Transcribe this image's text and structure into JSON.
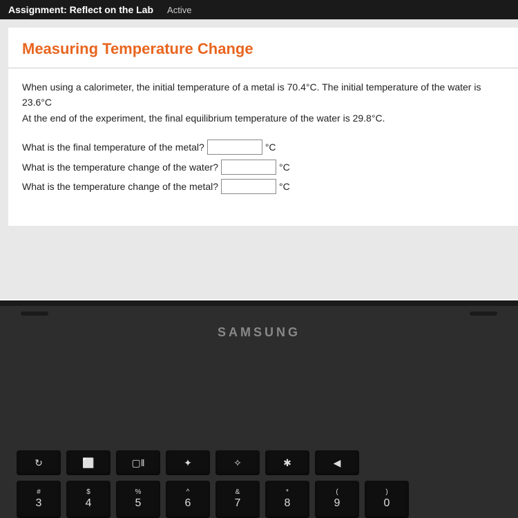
{
  "header": {
    "assignment_label": "Assignment: Reflect on the Lab",
    "status": "Active"
  },
  "lesson": {
    "title": "Measuring Temperature Change",
    "problem_line1": "When using a calorimeter, the initial temperature of a metal is 70.4°C. The initial temperature of the water is 23.6°C",
    "problem_line2": "At the end of the experiment, the final equilibrium temperature of the water is 29.8°C.",
    "questions": [
      {
        "label": "What is the final temperature of the metal?",
        "unit": "°C",
        "value": ""
      },
      {
        "label": "What is the temperature change of the water?",
        "unit": "°C",
        "value": ""
      },
      {
        "label": "What is the temperature change of the metal?",
        "unit": "°C",
        "value": ""
      }
    ]
  },
  "laptop": {
    "brand": "SAMSUNG"
  },
  "keyboard": {
    "fn_row": [
      "↻",
      "⬜",
      "▢‖",
      "✦",
      "✧",
      "✱",
      "◀"
    ],
    "num_row": [
      {
        "top": "#",
        "main": "3"
      },
      {
        "top": "$",
        "main": "4"
      },
      {
        "top": "%",
        "main": "5"
      },
      {
        "top": "^",
        "main": "6"
      },
      {
        "top": "&",
        "main": "7"
      },
      {
        "top": "*",
        "main": "8"
      },
      {
        "top": "(",
        "main": "9"
      },
      {
        "top": ")",
        "main": "0"
      }
    ]
  },
  "colors": {
    "accent": "#e8651f",
    "header_bg": "#1a1a1a",
    "body_bg": "#e8e8e8",
    "keyboard_key": "#0f0f0f"
  }
}
